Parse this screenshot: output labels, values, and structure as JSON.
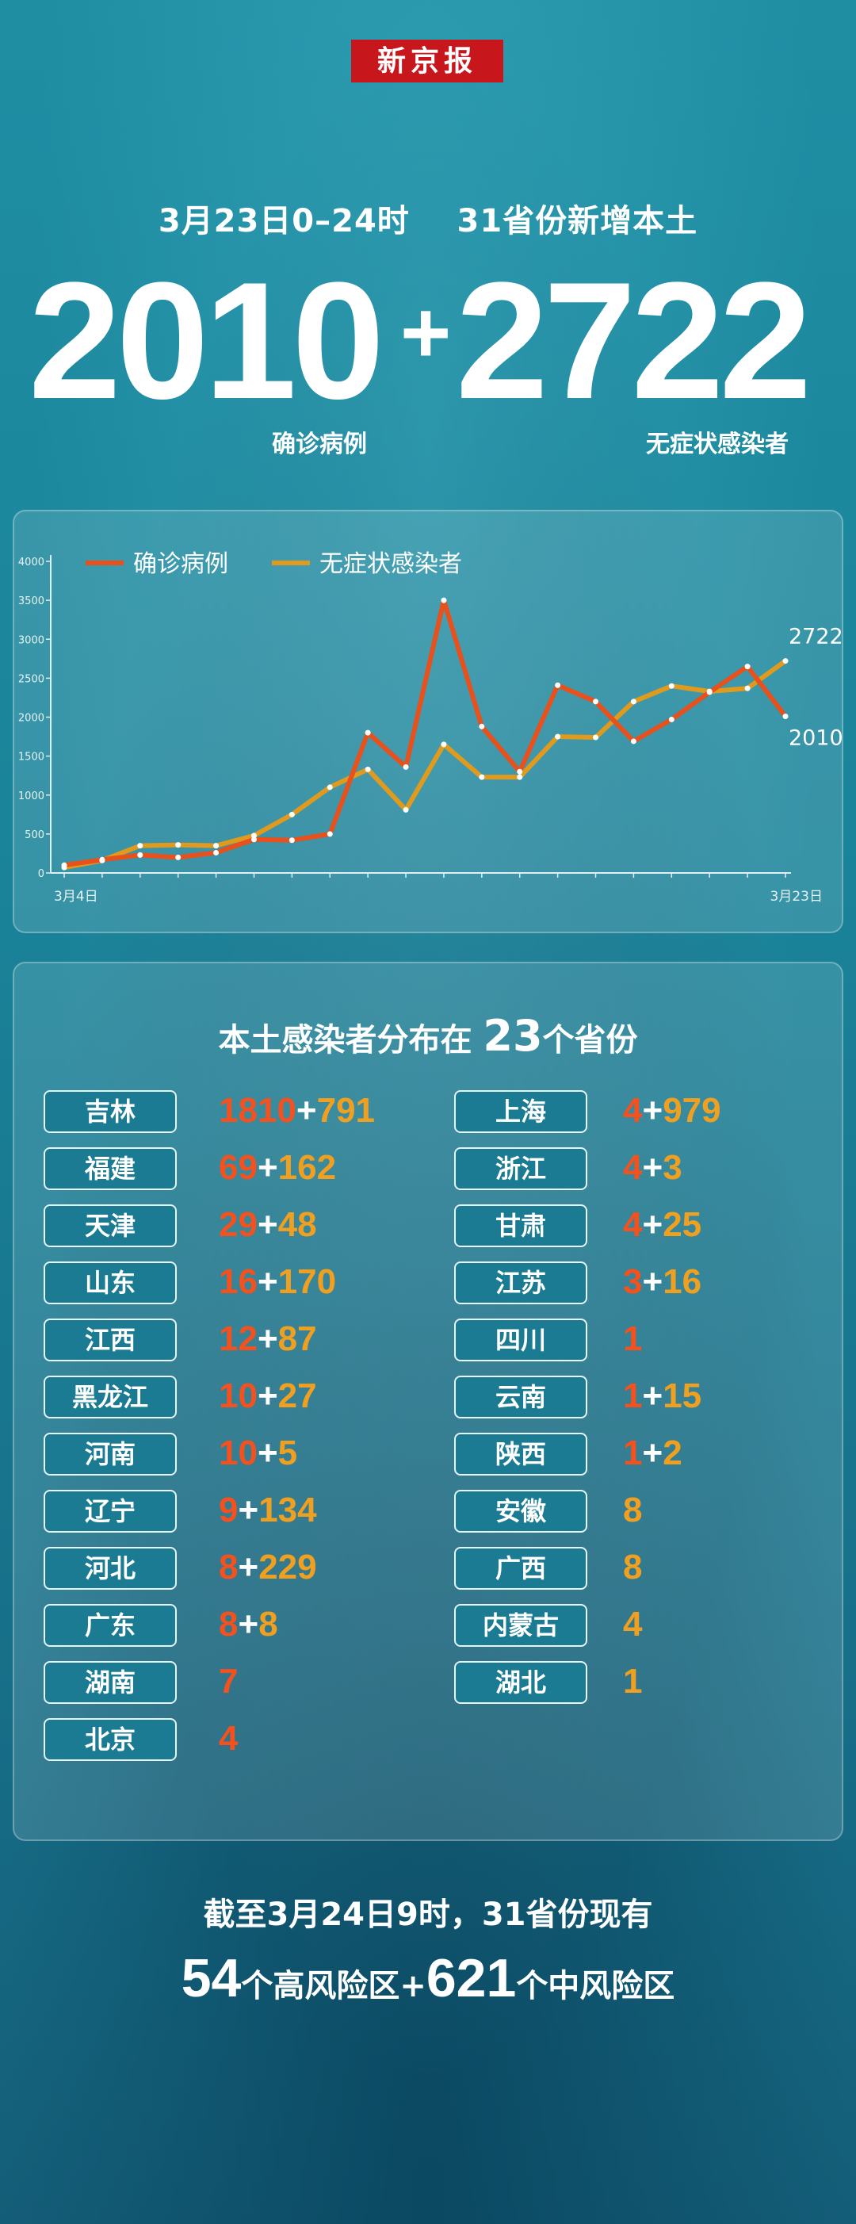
{
  "header": {
    "logo_text": "新京报",
    "date_line": "3月23日0–24时    31省份新增本土",
    "confirmed_number": "2010",
    "plus": "+",
    "asymptomatic_number": "2722",
    "confirmed_label": "确诊病例",
    "asymptomatic_label": "无症状感染者"
  },
  "chart_data": {
    "type": "line",
    "x_start_label": "3月4日",
    "x_end_label": "3月23日",
    "y_ticks": [
      "0",
      "500",
      "1000",
      "1500",
      "2000",
      "2500",
      "3000",
      "3500",
      "4000"
    ],
    "ylim": [
      0,
      4000
    ],
    "legend": [
      "确诊病例",
      "无症状感染者"
    ],
    "series": [
      {
        "name": "确诊病例",
        "color": "#e8501c",
        "values": [
          100,
          170,
          230,
          200,
          260,
          430,
          420,
          500,
          1800,
          1360,
          3500,
          1880,
          1300,
          2410,
          2200,
          1690,
          1970,
          2320,
          2650,
          2010
        ]
      },
      {
        "name": "无症状感染者",
        "color": "#e09a1e",
        "values": [
          70,
          160,
          350,
          360,
          350,
          480,
          750,
          1100,
          1330,
          810,
          1650,
          1230,
          1230,
          1750,
          1740,
          2200,
          2400,
          2330,
          2370,
          2722
        ]
      }
    ],
    "end_labels": {
      "confirmed": "2010",
      "asymptomatic": "2722"
    }
  },
  "distribution": {
    "title_prefix": "本土感染者分布在 ",
    "count": "23",
    "title_suffix": "个省份",
    "left": [
      {
        "province": "吉林",
        "confirmed": "1810",
        "asymptomatic": "791"
      },
      {
        "province": "福建",
        "confirmed": "69",
        "asymptomatic": "162"
      },
      {
        "province": "天津",
        "confirmed": "29",
        "asymptomatic": "48"
      },
      {
        "province": "山东",
        "confirmed": "16",
        "asymptomatic": "170"
      },
      {
        "province": "江西",
        "confirmed": "12",
        "asymptomatic": "87"
      },
      {
        "province": "黑龙江",
        "confirmed": "10",
        "asymptomatic": "27"
      },
      {
        "province": "河南",
        "confirmed": "10",
        "asymptomatic": "5"
      },
      {
        "province": "辽宁",
        "confirmed": "9",
        "asymptomatic": "134"
      },
      {
        "province": "河北",
        "confirmed": "8",
        "asymptomatic": "229"
      },
      {
        "province": "广东",
        "confirmed": "8",
        "asymptomatic": "8"
      },
      {
        "province": "湖南",
        "confirmed": "7",
        "asymptomatic": ""
      },
      {
        "province": "北京",
        "confirmed": "4",
        "asymptomatic": ""
      }
    ],
    "right": [
      {
        "province": "上海",
        "confirmed": "4",
        "asymptomatic": "979"
      },
      {
        "province": "浙江",
        "confirmed": "4",
        "asymptomatic": "3"
      },
      {
        "province": "甘肃",
        "confirmed": "4",
        "asymptomatic": "25"
      },
      {
        "province": "江苏",
        "confirmed": "3",
        "asymptomatic": "16"
      },
      {
        "province": "四川",
        "confirmed": "1",
        "asymptomatic": ""
      },
      {
        "province": "云南",
        "confirmed": "1",
        "asymptomatic": "15"
      },
      {
        "province": "陕西",
        "confirmed": "1",
        "asymptomatic": "2"
      },
      {
        "province": "安徽",
        "confirmed": "",
        "asymptomatic": "8"
      },
      {
        "province": "广西",
        "confirmed": "",
        "asymptomatic": "8"
      },
      {
        "province": "内蒙古",
        "confirmed": "",
        "asymptomatic": "4"
      },
      {
        "province": "湖北",
        "confirmed": "",
        "asymptomatic": "1"
      }
    ]
  },
  "footer": {
    "line1": "截至3月24日9时，31省份现有",
    "high_risk_count": "54",
    "high_risk_label": "个高风险区+",
    "mid_risk_count": "621",
    "mid_risk_label": "个中风险区"
  }
}
